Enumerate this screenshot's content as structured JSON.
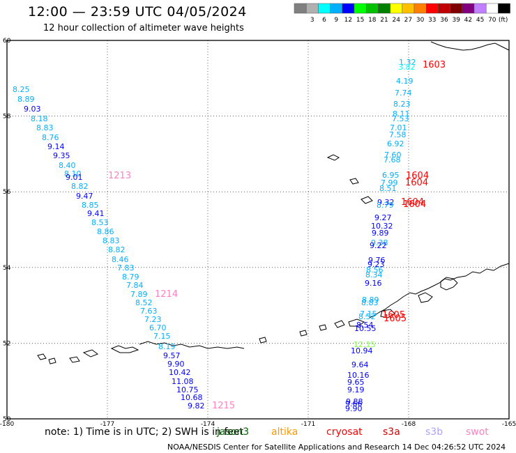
{
  "title": "12:00 — 23:59 UTC 04/05/2024",
  "subtitle": "12 hour collection of altimeter wave heights",
  "legend": {
    "unit": "(ft)",
    "bins": [
      {
        "label": "",
        "color": "#808080"
      },
      {
        "label": "3",
        "color": "#b0b0b0"
      },
      {
        "label": "6",
        "color": "#00ffff"
      },
      {
        "label": "9",
        "color": "#00b0ff"
      },
      {
        "label": "12",
        "color": "#0000ff"
      },
      {
        "label": "15",
        "color": "#00ff00"
      },
      {
        "label": "18",
        "color": "#00c000"
      },
      {
        "label": "21",
        "color": "#008000"
      },
      {
        "label": "24",
        "color": "#ffff00"
      },
      {
        "label": "27",
        "color": "#ffc000"
      },
      {
        "label": "30",
        "color": "#ff8000"
      },
      {
        "label": "33",
        "color": "#ff0000"
      },
      {
        "label": "36",
        "color": "#c00000"
      },
      {
        "label": "39",
        "color": "#800000"
      },
      {
        "label": "42",
        "color": "#800080"
      },
      {
        "label": "45",
        "color": "#c080ff"
      },
      {
        "label": "70",
        "color": "#ffffff"
      },
      {
        "label": "",
        "color": "#000000"
      }
    ]
  },
  "map": {
    "x_ticks": [
      "-180",
      "-177",
      "-174",
      "-171",
      "-168",
      "-165"
    ],
    "y_ticks": [
      "60",
      "58",
      "56",
      "54",
      "52",
      "50"
    ],
    "west_track": {
      "values": [
        "8.25",
        "8.89",
        "9.03",
        "8.18",
        "8.83",
        "8.76",
        "9.14",
        "9.35",
        "8.40",
        "8.10",
        "9.01",
        "8.82",
        "9.47",
        "8.85",
        "9.41",
        "8.53",
        "8.86",
        "8.83",
        "8.82",
        "8.46",
        "7.83",
        "8.79",
        "7.84",
        "7.89",
        "8.52",
        "7.63",
        "7.23",
        "6.70",
        "7.15",
        "8.19",
        "9.57",
        "9.90",
        "10.42",
        "11.08",
        "10.75",
        "10.68",
        "9.82"
      ],
      "colors": [
        "#00b0ff",
        "#00b0ff",
        "#0000ff",
        "#00b0ff",
        "#00b0ff",
        "#00b0ff",
        "#0000ff",
        "#0000ff",
        "#00b0ff",
        "#00b0ff",
        "#0000ff",
        "#00b0ff",
        "#0000ff",
        "#00b0ff",
        "#0000ff",
        "#00b0ff",
        "#00b0ff",
        "#00b0ff",
        "#00b0ff",
        "#00b0ff",
        "#00b0ff",
        "#00b0ff",
        "#00b0ff",
        "#00b0ff",
        "#00b0ff",
        "#00b0ff",
        "#00b0ff",
        "#00b0ff",
        "#00b0ff",
        "#00b0ff",
        "#0000ff",
        "#0000ff",
        "#0000ff",
        "#0000ff",
        "#0000ff",
        "#0000ff",
        "#0000ff"
      ],
      "times": [
        {
          "label": "1213",
          "color": "#ff80c0"
        },
        {
          "label": "1214",
          "color": "#ff80c0"
        },
        {
          "label": "1215",
          "color": "#ff80c0"
        }
      ]
    },
    "east_track": {
      "values": [
        "1.32",
        "3.82",
        "4.19",
        "7.74",
        "8.23",
        "8.11",
        "7.53",
        "7.01",
        "7.58",
        "6.92",
        "7.60",
        "7.68",
        "6.95",
        "7.99",
        "8.51",
        "9.32",
        "8.79",
        "9.27",
        "10.32",
        "9.89",
        "9.38",
        "9.22",
        "9.76",
        "9.23",
        "8.56",
        "8.34",
        "9.16",
        "8.89",
        "8.83",
        "7.15",
        "8.52",
        "8.54",
        "10.55",
        "12.15",
        "10.94",
        "9.64",
        "10.16",
        "9.65",
        "9.19",
        "9.88",
        "9.66",
        "9.90"
      ],
      "colors": [
        "#00b0ff",
        "#00ffff",
        "#00b0ff",
        "#00b0ff",
        "#00b0ff",
        "#00b0ff",
        "#00b0ff",
        "#00b0ff",
        "#00b0ff",
        "#00b0ff",
        "#00b0ff",
        "#00b0ff",
        "#00b0ff",
        "#00b0ff",
        "#00b0ff",
        "#0000ff",
        "#00b0ff",
        "#0000ff",
        "#0000ff",
        "#0000ff",
        "#00b0ff",
        "#0000ff",
        "#0000ff",
        "#0000ff",
        "#00b0ff",
        "#00b0ff",
        "#0000ff",
        "#00b0ff",
        "#00b0ff",
        "#00b0ff",
        "#00b0ff",
        "#0000ff",
        "#0000ff",
        "#80ff40",
        "#0000ff",
        "#0000ff",
        "#0000ff",
        "#0000ff",
        "#0000ff",
        "#0000ff",
        "#0000ff",
        "#0000ff"
      ],
      "times": [
        {
          "label": "1603",
          "color": "#ff0000"
        },
        {
          "label": "1604",
          "color": "#ff0000"
        },
        {
          "label": "1604",
          "color": "#ff0000"
        },
        {
          "label": "1604",
          "color": "#ff0000"
        },
        {
          "label": "1604",
          "color": "#ff0000"
        },
        {
          "label": "1605",
          "color": "#ff0000"
        },
        {
          "label": "1605",
          "color": "#ff0000"
        }
      ]
    }
  },
  "note": "note:  1) Time is in UTC;  2) SWH is in feet",
  "missions": [
    {
      "label": "jason3",
      "color": "#006400"
    },
    {
      "label": "altika",
      "color": "#ff9900"
    },
    {
      "label": "cryosat",
      "color": "#ff0000"
    },
    {
      "label": "s3a",
      "color": "#cc0000"
    },
    {
      "label": "s3b",
      "color": "#b0a0ff"
    },
    {
      "label": "swot",
      "color": "#ff80c0"
    }
  ],
  "credit": "NOAA/NESDIS Center for Satellite Applications and Research    14 Dec 04:26:52 UTC 2024"
}
